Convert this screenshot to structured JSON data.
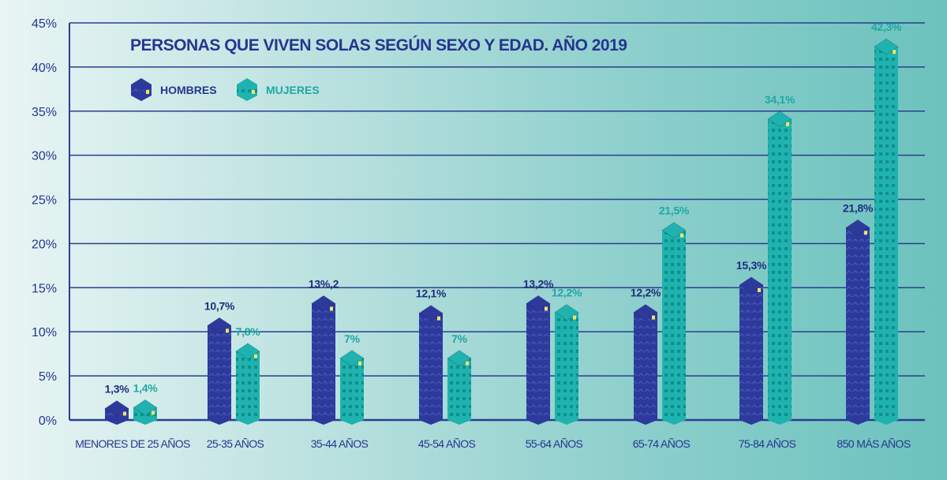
{
  "chart_data": {
    "type": "bar",
    "title": "PERSONAS QUE VIVEN SOLAS SEGÚN SEXO Y EDAD. AÑO 2019",
    "xlabel": "",
    "ylabel": "",
    "ylim": [
      0,
      45
    ],
    "yticks": [
      "0%",
      "5%",
      "10%",
      "15%",
      "20%",
      "25%",
      "30%",
      "35%",
      "40%",
      "45%"
    ],
    "grid": true,
    "legend_position": "top-left",
    "categories": [
      "MENORES DE 25 AÑOS",
      "25-35 AÑOS",
      "35-44 AÑOS",
      "45-54 AÑOS",
      "55-64 AÑOS",
      "65-74 AÑOS",
      "75-84 AÑOS",
      "850 MÁS AÑOS"
    ],
    "series": [
      {
        "name": "HOMBRES",
        "color": "#2d3a9c",
        "values": [
          1.3,
          10.7,
          13.2,
          12.1,
          13.2,
          12.2,
          15.3,
          21.8
        ],
        "labels": [
          "1,3%",
          "10,7%",
          "13%,2",
          "12,1%",
          "13,2%",
          "12,2%",
          "15,3%",
          "21,8%"
        ],
        "label_color": "#1f2d7d"
      },
      {
        "name": "MUJERES",
        "color": "#1fb2ae",
        "values": [
          1.4,
          7.8,
          7,
          7,
          12.2,
          21.5,
          34.1,
          42.3
        ],
        "labels": [
          "1,4%",
          "7,8%",
          "7%",
          "7%",
          "12,2%",
          "21,5%",
          "34,1%",
          "42,3%"
        ],
        "label_color": "#1fa7a3"
      }
    ]
  }
}
